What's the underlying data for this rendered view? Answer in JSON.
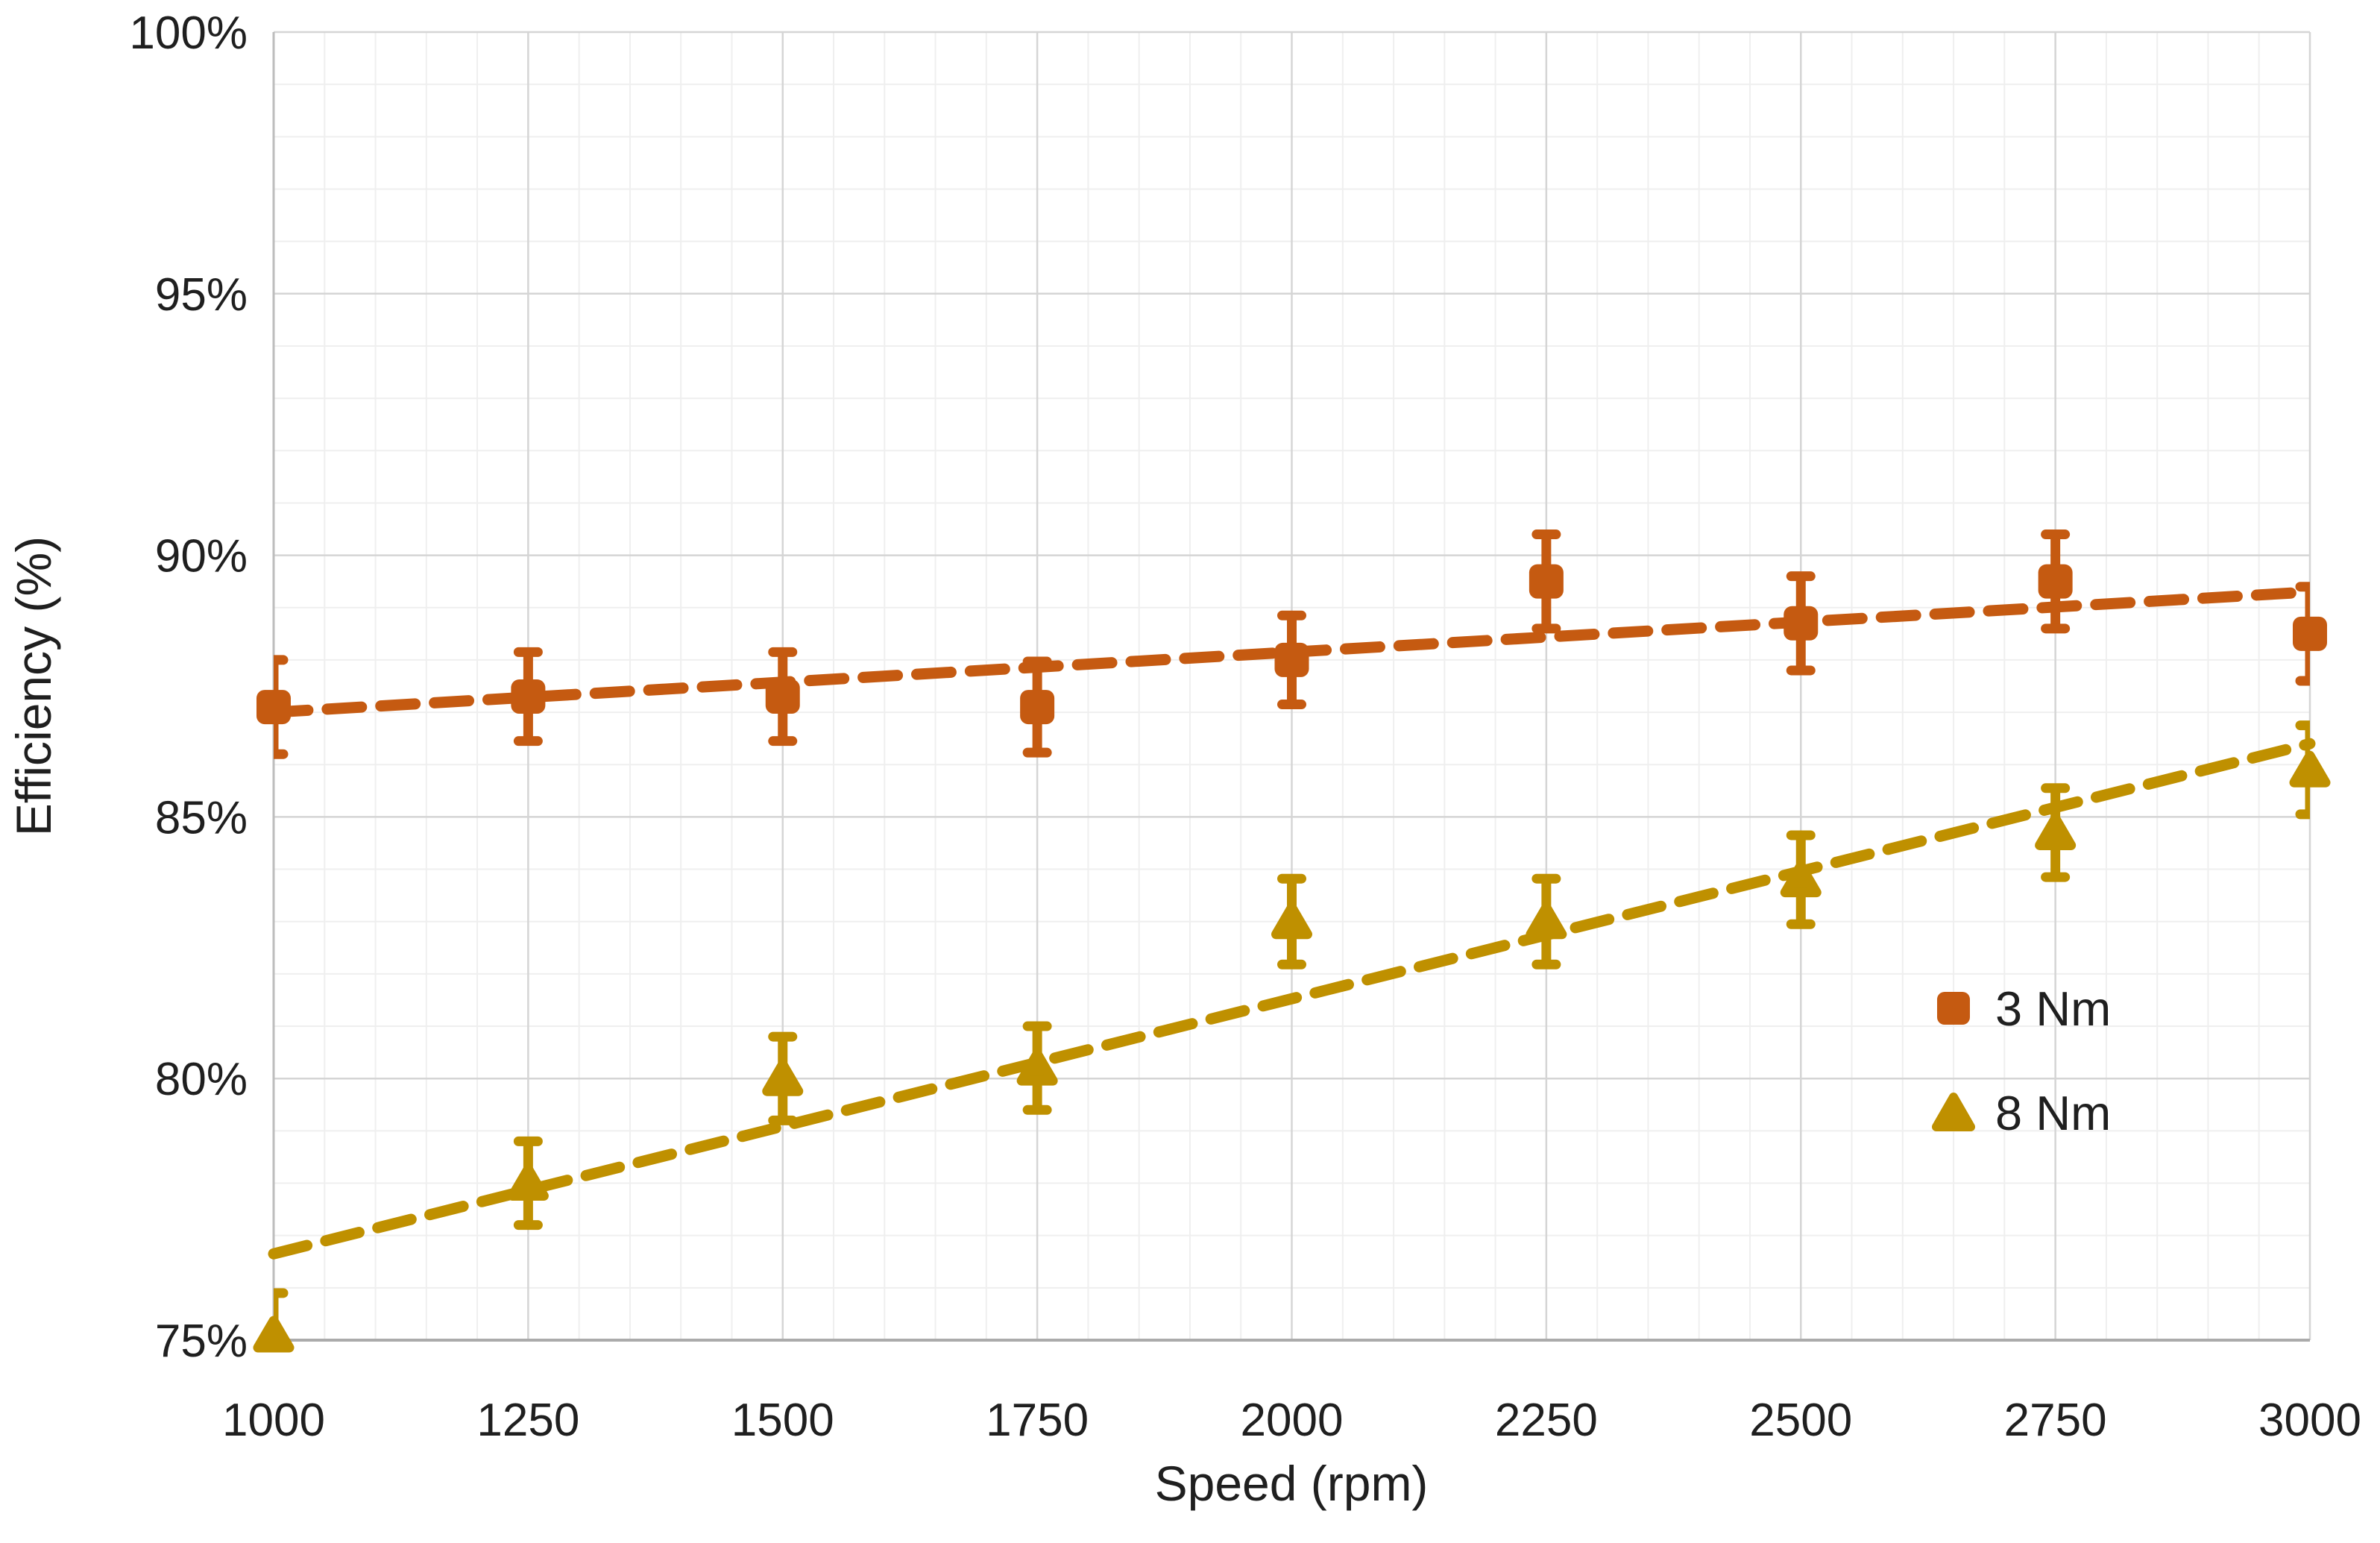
{
  "chart_data": {
    "type": "scatter",
    "title": "",
    "xlabel": "Speed (rpm)",
    "ylabel": "Efficiency (%)",
    "xlim": [
      1000,
      3000
    ],
    "ylim": [
      75,
      100
    ],
    "x_ticks": [
      1000,
      1250,
      1500,
      1750,
      2000,
      2250,
      2500,
      2750,
      3000
    ],
    "y_ticks": [
      100,
      95,
      90,
      85,
      80,
      75
    ],
    "y_tick_suffix": "%",
    "grid": {
      "x_minor_step": 50,
      "x_major_step": 250,
      "y_minor_step": 1,
      "y_major_step": 5,
      "visible": true
    },
    "legend": {
      "position": "inside-right"
    },
    "series": [
      {
        "name": "3 Nm",
        "marker": "square",
        "color": "#C55A11",
        "line_style": "dashed-trend",
        "x": [
          1000,
          1250,
          1500,
          1750,
          2000,
          2250,
          2500,
          2750,
          3000
        ],
        "y": [
          87.1,
          87.3,
          87.3,
          87.1,
          88.0,
          89.5,
          88.7,
          89.5,
          88.5
        ],
        "yerr": [
          0.9,
          0.85,
          0.85,
          0.87,
          0.85,
          0.9,
          0.9,
          0.9,
          0.9
        ],
        "trend": {
          "x": [
            1000,
            3000
          ],
          "y": [
            87.0,
            89.3
          ]
        }
      },
      {
        "name": "8 Nm",
        "marker": "triangle",
        "color": "#BF9000",
        "line_style": "dashed-trend",
        "x": [
          1000,
          1250,
          1500,
          1750,
          2000,
          2250,
          2500,
          2750,
          3000
        ],
        "y": [
          75.1,
          78.0,
          80.0,
          80.2,
          83.0,
          83.0,
          83.8,
          84.7,
          85.9
        ],
        "yerr": [
          0.8,
          0.8,
          0.8,
          0.8,
          0.82,
          0.82,
          0.85,
          0.85,
          0.85
        ],
        "trend": {
          "x": [
            1000,
            3000
          ],
          "y": [
            76.65,
            86.4
          ]
        }
      }
    ]
  }
}
